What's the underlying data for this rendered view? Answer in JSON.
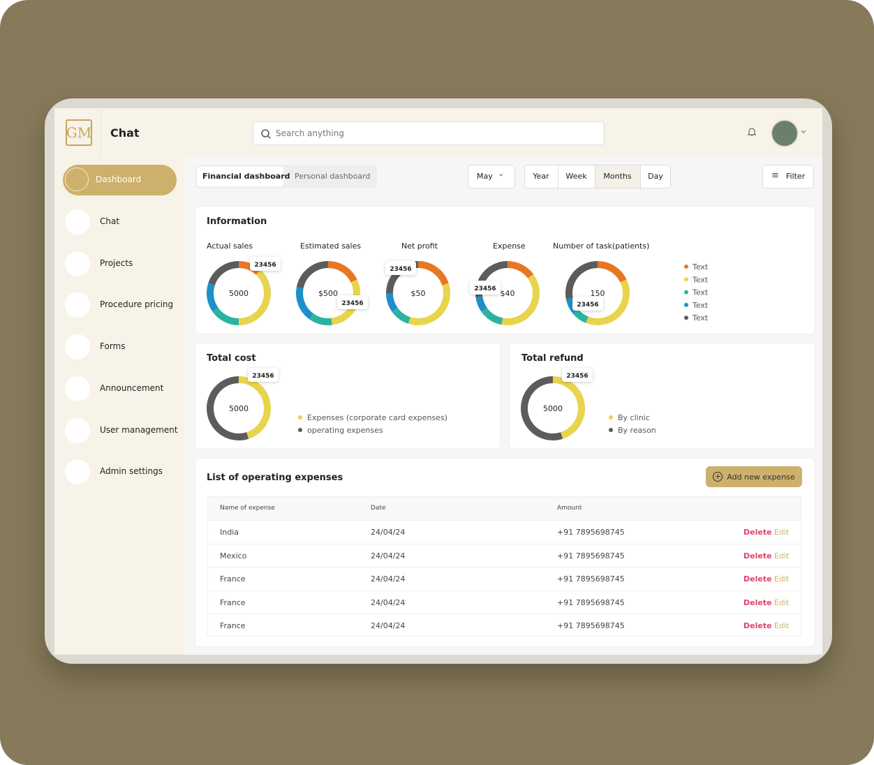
{
  "app": {
    "logo": "GM",
    "title": "Chat",
    "search_placeholder": "Search anything"
  },
  "sidebar": [
    {
      "label": "Dashboard",
      "active": true
    },
    {
      "label": "Chat"
    },
    {
      "label": "Projects"
    },
    {
      "label": "Procedure pricing"
    },
    {
      "label": "Forms"
    },
    {
      "label": "Announcement"
    },
    {
      "label": "User management"
    },
    {
      "label": "Admin settings"
    }
  ],
  "toolbar": {
    "tabs": [
      "Financial dashboard",
      "Personal dashboard"
    ],
    "active_tab": 0,
    "month": "May",
    "periods": [
      "Year",
      "Week",
      "Months",
      "Day"
    ],
    "active_period": 2,
    "filter": "Filter"
  },
  "information": {
    "title": "Information",
    "colors": [
      "#e87722",
      "#e8d44d",
      "#2bb3a0",
      "#1e8fc9",
      "#5c5c5c"
    ],
    "charts": [
      {
        "label": "Actual sales",
        "center": "5000",
        "callout": "23456",
        "segments": [
          12,
          38,
          15,
          15,
          20
        ]
      },
      {
        "label": "Estimated sales",
        "center": "$500",
        "callout": "23456",
        "segments": [
          18,
          30,
          12,
          18,
          22
        ]
      },
      {
        "label": "Net profit",
        "center": "$50",
        "callout": "23456",
        "segments": [
          20,
          35,
          10,
          10,
          25
        ]
      },
      {
        "label": "Expense",
        "center": "$40",
        "callout": "23456",
        "segments": [
          15,
          38,
          12,
          8,
          27
        ]
      },
      {
        "label": "Number of task(patients)",
        "center": "150",
        "callout": "23456",
        "segments": [
          18,
          38,
          8,
          8,
          28
        ]
      }
    ],
    "legend": [
      "Text",
      "Text",
      "Text",
      "Text",
      "Text"
    ]
  },
  "total_cost": {
    "title": "Total cost",
    "center": "5000",
    "callout": "23456",
    "colors": [
      "#e8d44d",
      "#5c5c5c"
    ],
    "segments": [
      45,
      55
    ],
    "legend": [
      "Expenses (corporate card expenses)",
      "operating expenses"
    ]
  },
  "total_refund": {
    "title": "Total refund",
    "center": "5000",
    "callout": "23456",
    "colors": [
      "#e8d44d",
      "#5c5c5c"
    ],
    "segments": [
      45,
      55
    ],
    "legend": [
      "By clinic",
      "By reason"
    ]
  },
  "expenses": {
    "title": "List of operating expenses",
    "button": "Add new expense",
    "columns": [
      "Name of expense",
      "Date",
      "Amount"
    ],
    "rows": [
      [
        "India",
        "24/04/24",
        "+91 7895698745"
      ],
      [
        "Mexico",
        "24/04/24",
        "+91 7895698745"
      ],
      [
        "France",
        "24/04/24",
        "+91 7895698745"
      ],
      [
        "France",
        "24/04/24",
        "+91 7895698745"
      ],
      [
        "France",
        "24/04/24",
        "+91 7895698745"
      ]
    ],
    "actions": [
      "Delete",
      "Edit"
    ]
  }
}
